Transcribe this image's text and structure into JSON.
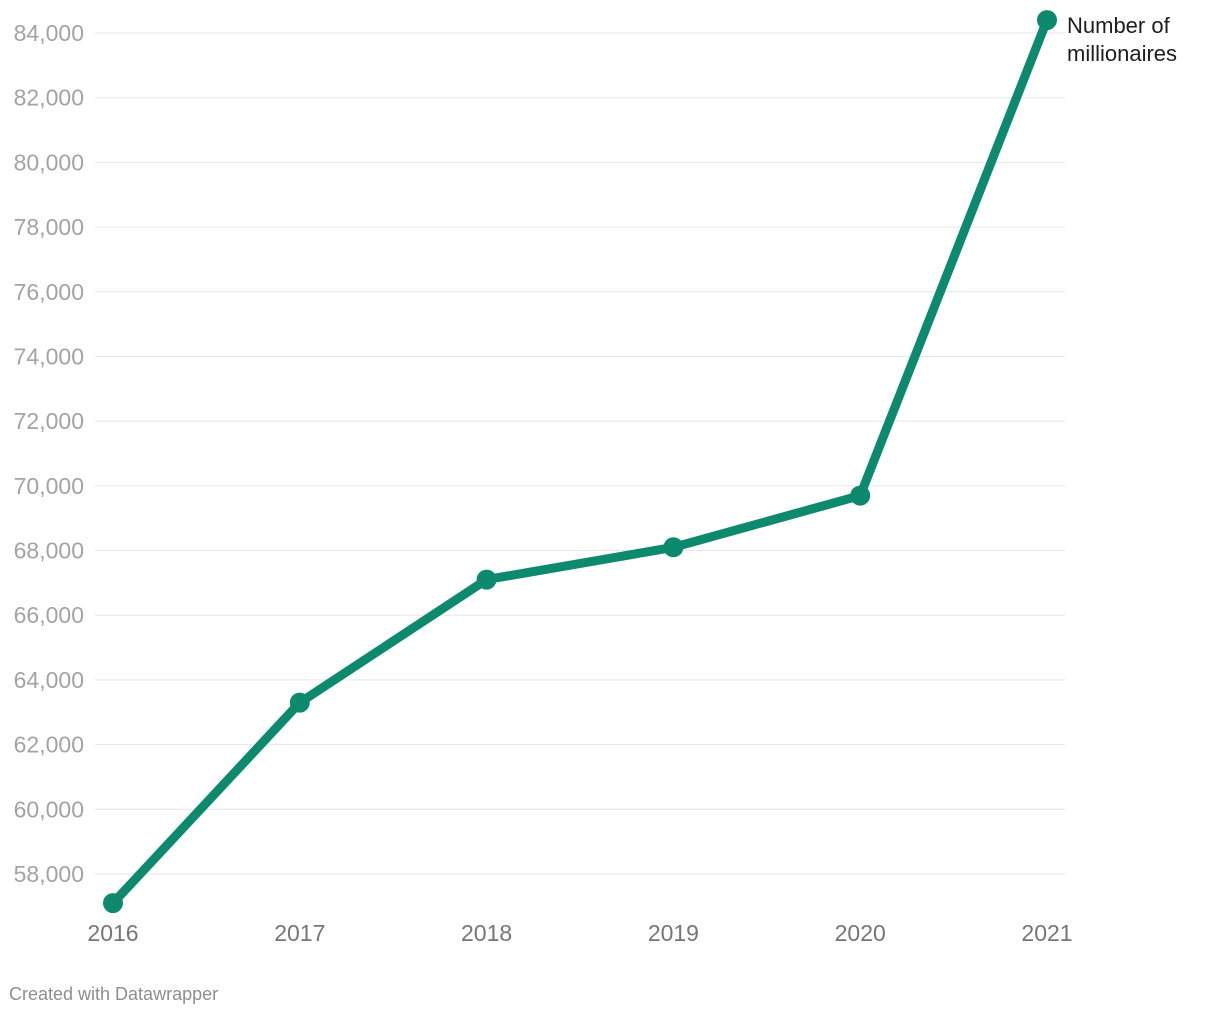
{
  "page": {
    "footer": "Created with Datawrapper"
  },
  "chart_data": {
    "type": "line",
    "title": "",
    "xlabel": "",
    "ylabel": "",
    "x": [
      2016,
      2017,
      2018,
      2019,
      2020,
      2021
    ],
    "x_tick_labels": [
      "2016",
      "2017",
      "2018",
      "2019",
      "2020",
      "2021"
    ],
    "series": [
      {
        "name": "Number of millionaires",
        "values": [
          57100,
          63300,
          67100,
          68100,
          69700,
          84400
        ]
      }
    ],
    "annotation_lines": [
      "Number of",
      "millionaires"
    ],
    "y_ticks": [
      58000,
      60000,
      62000,
      64000,
      66000,
      68000,
      70000,
      72000,
      74000,
      76000,
      78000,
      80000,
      82000,
      84000
    ],
    "y_tick_labels": [
      "58,000",
      "60,000",
      "62,000",
      "64,000",
      "66,000",
      "68,000",
      "70,000",
      "72,000",
      "74,000",
      "76,000",
      "78,000",
      "80,000",
      "82,000",
      "84,000"
    ],
    "ylim": [
      58000,
      84000
    ],
    "grid": "horizontal-only",
    "legend_position": "line-end-label"
  },
  "colors": {
    "line": "#0d8a6d",
    "point": "#0d8a6d",
    "grid": "#e6e6e6",
    "y_tick_label": "#a3a3a3",
    "x_tick_label": "#767676",
    "annotation": "#1d1d1d",
    "footer": "#8e8e8e",
    "background": "#ffffff"
  }
}
